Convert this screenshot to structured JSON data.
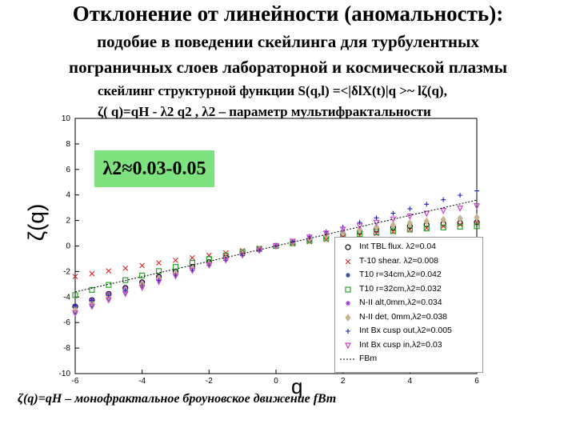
{
  "header": {
    "title": "Отклонение от линейности (аномальность):",
    "subtitle1": "подобие в поведении скейлинга для турбулентных",
    "subtitle2": "пограничных слоев лабораторной и космической плазмы"
  },
  "formulas": {
    "structure_function": "скейлинг структурной функции S(q,l) =<|δlX(t)|q >~ lζ(q),",
    "zeta_def": "ζ( q)=qH - λ2 q2 , λ2 – параметр мультифрактальности",
    "fbm_note": "ζ(q)=qH – монофрактальное броуновское движение fBm"
  },
  "annotation": {
    "lambda_range": "λ2≈0.03-0.05",
    "box_color": "#7ee37e"
  },
  "chart_data": {
    "type": "scatter",
    "xlabel": "q",
    "ylabel": "ζ(q)",
    "xlim": [
      -6,
      6
    ],
    "ylim": [
      -10,
      10
    ],
    "xticks": [
      -6,
      -4,
      -2,
      0,
      2,
      4,
      6
    ],
    "yticks": [
      -10,
      -8,
      -6,
      -4,
      -2,
      0,
      2,
      4,
      6,
      8,
      10
    ],
    "legend_position": "lower-right",
    "series": [
      {
        "name": "Int TBL flux. λ2=0.04",
        "marker": "circle",
        "color": "#000000",
        "H": 0.55,
        "lambda2": 0.04
      },
      {
        "name": "T-10 shear. λ2=0.008",
        "marker": "x",
        "color": "#d62728",
        "H": 0.35,
        "lambda2": 0.008
      },
      {
        "name": "T10 r=34cm,λ2=0.042",
        "marker": "star",
        "color": "#1f3f9f",
        "H": 0.62,
        "lambda2": 0.042
      },
      {
        "name": "T10 r=32cm,λ2=0.032",
        "marker": "square",
        "color": "#2ca02c",
        "H": 0.45,
        "lambda2": 0.032
      },
      {
        "name": "N-II alt,0mm,λ2=0.034",
        "marker": "star",
        "color": "#9b30d9",
        "H": 0.58,
        "lambda2": 0.034
      },
      {
        "name": "N-II det, 0mm,λ2=0.038",
        "marker": "diamond",
        "color": "#c8b48c",
        "H": 0.6,
        "lambda2": 0.038
      },
      {
        "name": "Int Bx cusp out,λ2=0.005",
        "marker": "plus",
        "color": "#1f1fbf",
        "H": 0.75,
        "lambda2": 0.005
      },
      {
        "name": "Int Bx cusp in,λ2=0.03",
        "marker": "triangle-down",
        "color": "#cc44cc",
        "H": 0.7,
        "lambda2": 0.03
      },
      {
        "name": "FBm",
        "marker": "line",
        "color": "#000000",
        "H": 0.6,
        "lambda2": 0
      }
    ],
    "q_values": [
      -6,
      -5.5,
      -5,
      -4.5,
      -4,
      -3.5,
      -3,
      -2.5,
      -2,
      -1.5,
      -1,
      -0.5,
      0,
      0.5,
      1,
      1.5,
      2,
      2.5,
      3,
      3.5,
      4,
      4.5,
      5,
      5.5,
      6
    ]
  }
}
